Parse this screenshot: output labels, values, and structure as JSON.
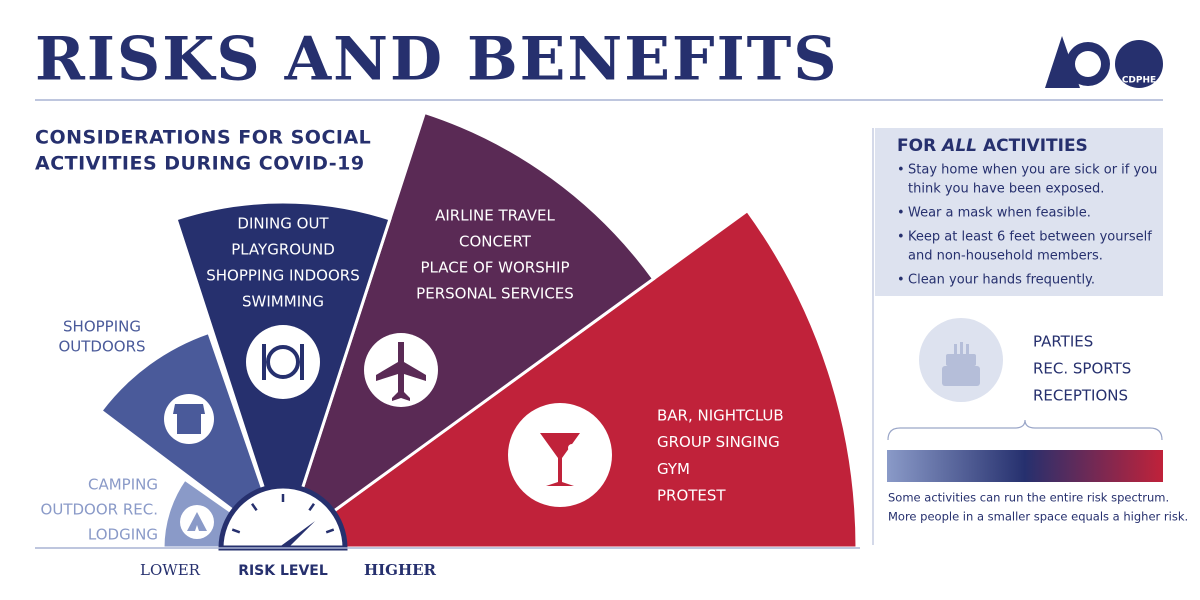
{
  "header": {
    "title": "RISKS AND BENEFITS",
    "logo_text": "CDPHE"
  },
  "subtitle": [
    "CONSIDERATIONS FOR SOCIAL",
    "ACTIVITIES DURING COVID-19"
  ],
  "segments": [
    {
      "lines": [
        "CAMPING",
        "OUTDOOR REC.",
        "LODGING"
      ]
    },
    {
      "lines": [
        "SHOPPING",
        "OUTDOORS"
      ]
    },
    {
      "lines": [
        "DINING OUT",
        "PLAYGROUND",
        "SHOPPING INDOORS",
        "SWIMMING"
      ]
    },
    {
      "lines": [
        "AIRLINE TRAVEL",
        "CONCERT",
        "PLACE OF WORSHIP",
        "PERSONAL SERVICES"
      ]
    },
    {
      "lines": [
        "BAR, NIGHTCLUB",
        "GROUP SINGING",
        "GYM",
        "PROTEST"
      ]
    }
  ],
  "scale": {
    "lower": "LOWER",
    "label": "RISK LEVEL",
    "higher": "HIGHER"
  },
  "all_activities": {
    "title": [
      "FOR",
      "ALL",
      "ACTIVITIES"
    ],
    "bullets": [
      [
        "Stay home when you are sick or if you",
        "think you have been exposed."
      ],
      [
        "Wear a mask when feasible."
      ],
      [
        "Keep at least 6 feet between yourself",
        "and non-household members."
      ],
      [
        "Clean your hands frequently."
      ]
    ]
  },
  "spectrum": {
    "activities": [
      "PARTIES",
      "REC. SPORTS",
      "RECEPTIONS"
    ],
    "note": [
      "Some activities can run the entire risk spectrum.",
      "More people in a smaller space equals a  higher risk."
    ]
  }
}
